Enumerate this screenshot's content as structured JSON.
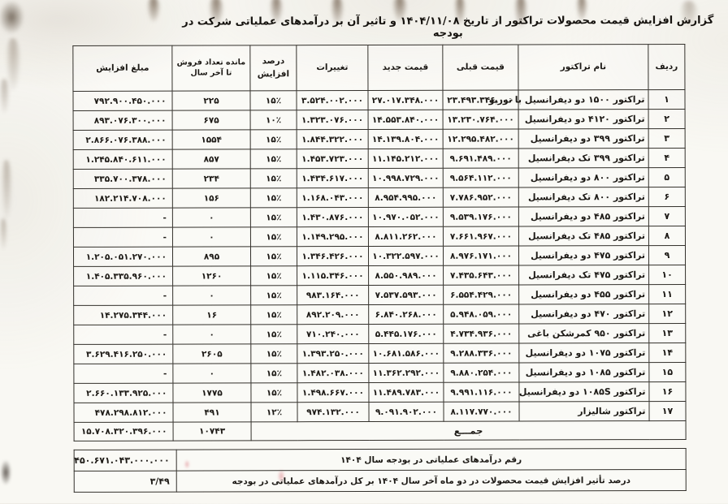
{
  "page": {
    "title": "گزارش افزایش قیمت محصولات تراکتور از تاریخ ۱۴۰۴/۱۱/۰۸ و تاثیر آن بر درآمدهای عملیاتی شرکت در بودجه"
  },
  "table": {
    "headers": {
      "no": "ردیف",
      "name": "نام تراکتور",
      "prev": "قیمت قبلی",
      "new": "قیمت جدید",
      "change": "تغییرات",
      "pct": "درصد افزایش",
      "remain": "مانده تعداد فروش تا آخر سال",
      "amount": "مبلغ افزایش"
    },
    "rows": [
      {
        "no": "۱",
        "name": "تراکتور ۱۵۰۰ دو دیفرانسیل با توربو",
        "prev": "۲۳.۴۹۳.۳۴۶.۰۰۰",
        "new": "۲۷.۰۱۷.۳۴۸.۰۰۰",
        "change": "۳.۵۲۴.۰۰۲.۰۰۰",
        "pct": "۱۵٪",
        "remain": "۲۲۵",
        "amount": "۷۹۲.۹۰۰.۴۵۰.۰۰۰"
      },
      {
        "no": "۲",
        "name": "تراکتور ۴۱۲۰ دو دیفرانسیل",
        "prev": "۱۳.۲۳۰.۷۶۴.۰۰۰",
        "new": "۱۴.۵۵۳.۸۴۰.۰۰۰",
        "change": "۱.۳۲۳.۰۷۶.۰۰۰",
        "pct": "۱۰٪",
        "remain": "۶۷۵",
        "amount": "۸۹۳.۰۷۶.۳۰۰.۰۰۰"
      },
      {
        "no": "۳",
        "name": "تراکتور ۳۹۹ دو دیفرانسیل",
        "prev": "۱۲.۲۹۵.۴۸۲.۰۰۰",
        "new": "۱۴.۱۳۹.۸۰۴.۰۰۰",
        "change": "۱.۸۴۴.۳۲۲.۰۰۰",
        "pct": "۱۵٪",
        "remain": "۱۵۵۴",
        "amount": "۲.۸۶۶.۰۷۶.۳۸۸.۰۰۰"
      },
      {
        "no": "۴",
        "name": "تراکتور ۳۹۹ تک دیفرانسیل",
        "prev": "۹.۶۹۱.۴۸۹.۰۰۰",
        "new": "۱۱.۱۴۵.۲۱۲.۰۰۰",
        "change": "۱.۴۵۳.۷۲۳.۰۰۰",
        "pct": "۱۵٪",
        "remain": "۸۵۷",
        "amount": "۱.۲۴۵.۸۴۰.۶۱۱.۰۰۰"
      },
      {
        "no": "۵",
        "name": "تراکتور ۸۰۰ دو دیفرانسیل",
        "prev": "۹.۵۶۴.۱۱۲.۰۰۰",
        "new": "۱۰.۹۹۸.۷۲۹.۰۰۰",
        "change": "۱.۴۳۴.۶۱۷.۰۰۰",
        "pct": "۱۵٪",
        "remain": "۲۳۴",
        "amount": "۳۳۵.۷۰۰.۳۷۸.۰۰۰"
      },
      {
        "no": "۶",
        "name": "تراکتور ۸۰۰ تک دیفرانسیل",
        "prev": "۷.۷۸۶.۹۵۲.۰۰۰",
        "new": "۸.۹۵۴.۹۹۵.۰۰۰",
        "change": "۱.۱۶۸.۰۴۳.۰۰۰",
        "pct": "۱۵٪",
        "remain": "۱۵۶",
        "amount": "۱۸۲.۲۱۴.۷۰۸.۰۰۰"
      },
      {
        "no": "۷",
        "name": "تراکتور ۴۸۵ دو دیفرانسیل",
        "prev": "۹.۵۳۹.۱۷۶.۰۰۰",
        "new": "۱۰.۹۷۰.۰۵۲.۰۰۰",
        "change": "۱.۴۳۰.۸۷۶.۰۰۰",
        "pct": "۱۵٪",
        "remain": "۰",
        "amount": "-"
      },
      {
        "no": "۸",
        "name": "تراکتور ۴۸۵ تک دیفرانسیل",
        "prev": "۷.۶۶۱.۹۶۷.۰۰۰",
        "new": "۸.۸۱۱.۲۶۲.۰۰۰",
        "change": "۱.۱۴۹.۲۹۵.۰۰۰",
        "pct": "۱۵٪",
        "remain": "۰",
        "amount": "-"
      },
      {
        "no": "۹",
        "name": "تراکتور ۴۷۵ دو دیفرانسیل",
        "prev": "۸.۹۷۶.۱۷۱.۰۰۰",
        "new": "۱۰.۳۲۲.۵۹۷.۰۰۰",
        "change": "۱.۳۴۶.۴۲۶.۰۰۰",
        "pct": "۱۵٪",
        "remain": "۸۹۵",
        "amount": "۱.۲۰۵.۰۵۱.۲۷۰.۰۰۰"
      },
      {
        "no": "۱۰",
        "name": "تراکتور ۴۷۵ تک دیفرانسیل",
        "prev": "۷.۴۳۵.۶۴۳.۰۰۰",
        "new": "۸.۵۵۰.۹۸۹.۰۰۰",
        "change": "۱.۱۱۵.۳۴۶.۰۰۰",
        "pct": "۱۵٪",
        "remain": "۱۲۶۰",
        "amount": "۱.۴۰۵.۳۳۵.۹۶۰.۰۰۰"
      },
      {
        "no": "۱۱",
        "name": "تراکتور ۴۵۵ دو دیفرانسیل",
        "prev": "۶.۵۵۴.۴۲۹.۰۰۰",
        "new": "۷.۵۳۷.۵۹۳.۰۰۰",
        "change": "۹۸۳.۱۶۴.۰۰۰",
        "pct": "۱۵٪",
        "remain": "۰",
        "amount": "-"
      },
      {
        "no": "۱۲",
        "name": "تراکتور ۴۷۰ دو دیفرانسیل",
        "prev": "۵.۹۴۸.۰۵۹.۰۰۰",
        "new": "۶.۸۴۰.۲۶۸.۰۰۰",
        "change": "۸۹۲.۲۰۹.۰۰۰",
        "pct": "۱۵٪",
        "remain": "۱۶",
        "amount": "۱۴.۲۷۵.۳۴۴.۰۰۰"
      },
      {
        "no": "۱۳",
        "name": "تراکتور ۹۵۰ کمرشکن باغی",
        "prev": "۴.۷۳۴.۹۳۶.۰۰۰",
        "new": "۵.۴۴۵.۱۷۶.۰۰۰",
        "change": "۷۱۰.۲۴۰.۰۰۰",
        "pct": "۱۵٪",
        "remain": "۰",
        "amount": "-"
      },
      {
        "no": "۱۴",
        "name": "تراکتور ۱۰۷۵ دو دیفرانسیل",
        "prev": "۹.۲۸۸.۳۳۶.۰۰۰",
        "new": "۱۰.۶۸۱.۵۸۶.۰۰۰",
        "change": "۱.۳۹۳.۲۵۰.۰۰۰",
        "pct": "۱۵٪",
        "remain": "۲۶۰۵",
        "amount": "۳.۶۲۹.۴۱۶.۲۵۰.۰۰۰"
      },
      {
        "no": "۱۵",
        "name": "تراکتور ۱۰۸۵ دو دیفرانسیل",
        "prev": "۹.۸۸۰.۲۵۴.۰۰۰",
        "new": "۱۱.۳۶۲.۲۹۲.۰۰۰",
        "change": "۱.۴۸۲.۰۳۸.۰۰۰",
        "pct": "۱۵٪",
        "remain": "۰",
        "amount": "-"
      },
      {
        "no": "۱۶",
        "name": "تراکتور ۱۰۸۵S دو دیفرانسیل",
        "prev": "۹.۹۹۱.۱۱۶.۰۰۰",
        "new": "۱۱.۴۸۹.۷۸۳.۰۰۰",
        "change": "۱.۴۹۸.۶۶۷.۰۰۰",
        "pct": "۱۵٪",
        "remain": "۱۷۷۵",
        "amount": "۲.۶۶۰.۱۳۳.۹۲۵.۰۰۰"
      },
      {
        "no": "۱۷",
        "name": "تراکتور شالیزار",
        "prev": "۸.۱۱۷.۷۷۰.۰۰۰",
        "new": "۹.۰۹۱.۹۰۲.۰۰۰",
        "change": "۹۷۴.۱۳۲.۰۰۰",
        "pct": "۱۲٪",
        "remain": "۴۹۱",
        "amount": "۴۷۸.۲۹۸.۸۱۲.۰۰۰"
      }
    ],
    "total": {
      "label": "جمـــع",
      "remain": "۱۰۷۴۳",
      "amount": "۱۵.۷۰۸.۳۲۰.۳۹۶.۰۰۰"
    },
    "footer": [
      {
        "label": "رقم درآمدهای عملیاتی در بودجه سال ۱۴۰۴",
        "value": "۴۵۰.۶۷۱.۰۴۳.۰۰۰.۰۰۰"
      },
      {
        "label": "درصد تأثیر افزایش قیمت محصولات در دو ماه آخر سال ۱۴۰۴ بر کل درآمدهای عملیاتی در بودجه",
        "value": "۳/۴۹"
      }
    ]
  }
}
